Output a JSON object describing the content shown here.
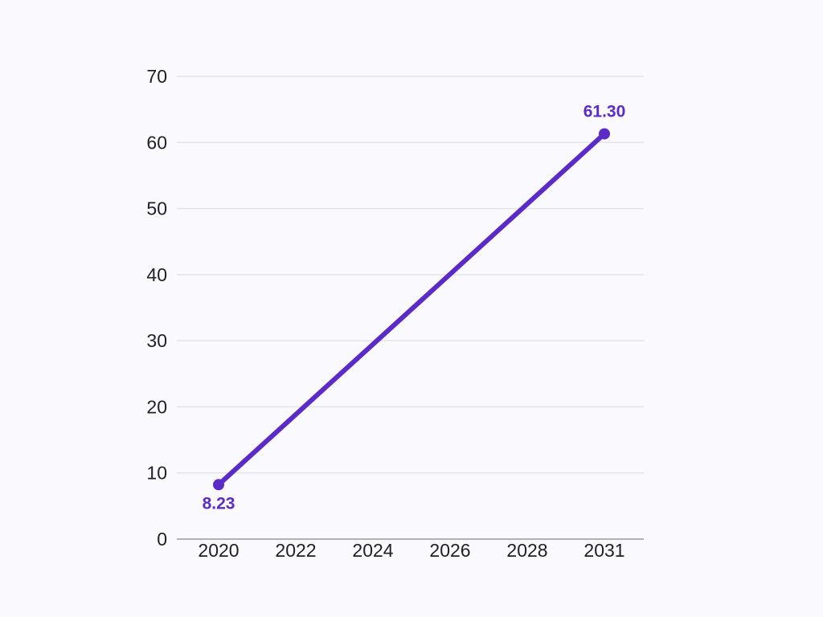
{
  "chart_data": {
    "type": "line",
    "categories": [
      "2020",
      "2022",
      "2024",
      "2026",
      "2028",
      "2031"
    ],
    "series": [
      {
        "name": "value",
        "points": [
          {
            "category": "2020",
            "value": 8.23,
            "label": "8.23",
            "label_position": "below"
          },
          {
            "category": "2031",
            "value": 61.3,
            "label": "61.30",
            "label_position": "above"
          }
        ]
      }
    ],
    "title": "",
    "xlabel": "",
    "ylabel": "",
    "ylim": [
      0,
      70
    ],
    "yticks": [
      0,
      10,
      20,
      30,
      40,
      50,
      60,
      70
    ],
    "grid": true,
    "legend": false,
    "colors": {
      "background": "#faf9fe",
      "gridline": "#e4e3e8",
      "axis_line": "#b2b1b8",
      "tick_text": "#212124",
      "series_line": "#5b2bc7",
      "point_fill": "#5b2bc7",
      "point_label": "#5b2bc7"
    }
  }
}
